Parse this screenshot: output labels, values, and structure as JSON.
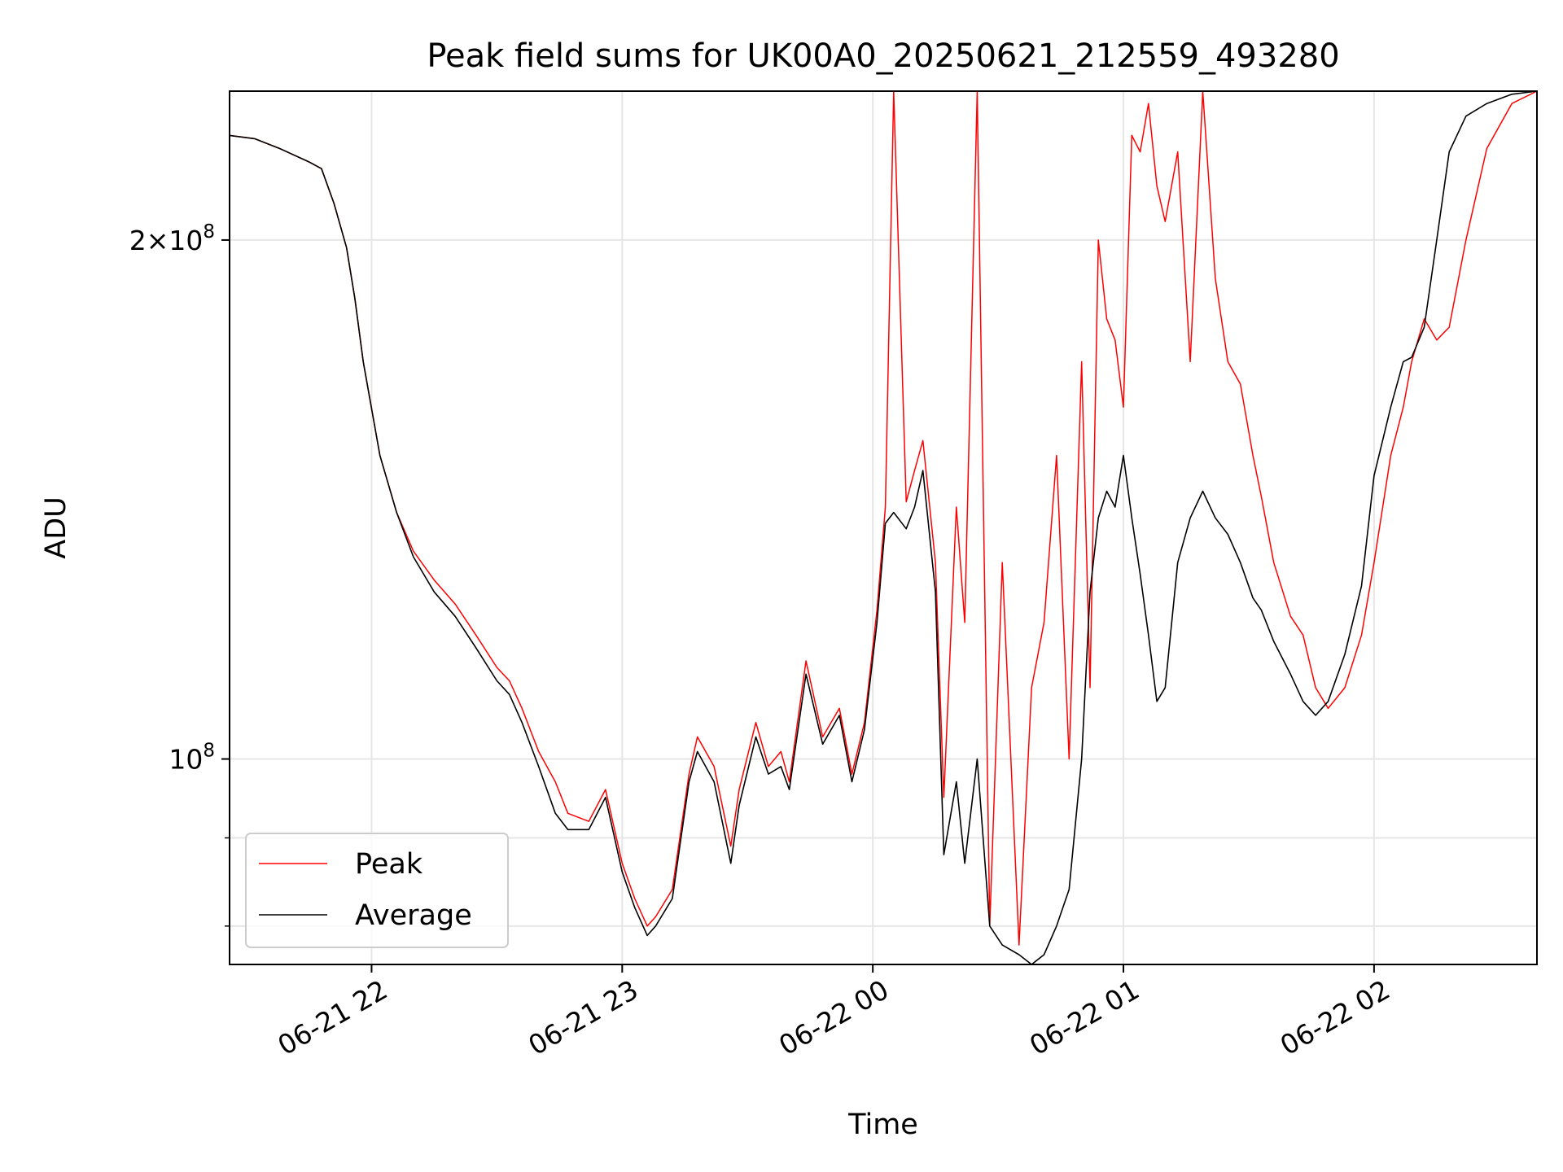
{
  "chart_data": {
    "type": "line",
    "title": "Peak field sums for UK00A0_20250621_212559_493280",
    "xlabel": "Time",
    "ylabel": "ADU",
    "y_scale": "log",
    "ylim": [
      76000000,
      244000000
    ],
    "xlim": [
      "2025-06-21 21:26",
      "2025-06-22 02:39"
    ],
    "grid": true,
    "legend_location": "lower-left",
    "x_ticks": [
      {
        "value": "2025-06-21 22:00",
        "label": "06-21 22"
      },
      {
        "value": "2025-06-21 23:00",
        "label": "06-21 23"
      },
      {
        "value": "2025-06-22 00:00",
        "label": "06-22 00"
      },
      {
        "value": "2025-06-22 01:00",
        "label": "06-22 01"
      },
      {
        "value": "2025-06-22 02:00",
        "label": "06-22 02"
      }
    ],
    "y_ticks": [
      {
        "value": 100000000,
        "base": "10",
        "exp": "8",
        "coef": ""
      },
      {
        "value": 200000000,
        "base": "10",
        "exp": "8",
        "coef": "2"
      }
    ],
    "y_minor_ticks": [
      80000000,
      90000000
    ],
    "series": [
      {
        "name": "Peak",
        "color": "#ff0000",
        "x": [
          "2025-06-21 21:26",
          "2025-06-21 21:32",
          "2025-06-21 21:38",
          "2025-06-21 21:45",
          "2025-06-21 21:48",
          "2025-06-21 21:51",
          "2025-06-21 21:54",
          "2025-06-21 21:56",
          "2025-06-21 21:58",
          "2025-06-21 22:02",
          "2025-06-21 22:06",
          "2025-06-21 22:10",
          "2025-06-21 22:15",
          "2025-06-21 22:20",
          "2025-06-21 22:25",
          "2025-06-21 22:30",
          "2025-06-21 22:33",
          "2025-06-21 22:36",
          "2025-06-21 22:40",
          "2025-06-21 22:44",
          "2025-06-21 22:47",
          "2025-06-21 22:52",
          "2025-06-21 22:56",
          "2025-06-21 23:00",
          "2025-06-21 23:03",
          "2025-06-21 23:06",
          "2025-06-21 23:08",
          "2025-06-21 23:12",
          "2025-06-21 23:16",
          "2025-06-21 23:18",
          "2025-06-21 23:22",
          "2025-06-21 23:26",
          "2025-06-21 23:28",
          "2025-06-21 23:32",
          "2025-06-21 23:35",
          "2025-06-21 23:38",
          "2025-06-21 23:40",
          "2025-06-21 23:44",
          "2025-06-21 23:48",
          "2025-06-21 23:52",
          "2025-06-21 23:55",
          "2025-06-21 23:58",
          "2025-06-22 00:01",
          "2025-06-22 00:03",
          "2025-06-22 00:05",
          "2025-06-22 00:08",
          "2025-06-22 00:10",
          "2025-06-22 00:12",
          "2025-06-22 00:15",
          "2025-06-22 00:17",
          "2025-06-22 00:20",
          "2025-06-22 00:22",
          "2025-06-22 00:25",
          "2025-06-22 00:28",
          "2025-06-22 00:31",
          "2025-06-22 00:35",
          "2025-06-22 00:38",
          "2025-06-22 00:41",
          "2025-06-22 00:44",
          "2025-06-22 00:47",
          "2025-06-22 00:50",
          "2025-06-22 00:52",
          "2025-06-22 00:54",
          "2025-06-22 00:56",
          "2025-06-22 00:58",
          "2025-06-22 01:00",
          "2025-06-22 01:02",
          "2025-06-22 01:04",
          "2025-06-22 01:06",
          "2025-06-22 01:08",
          "2025-06-22 01:10",
          "2025-06-22 01:13",
          "2025-06-22 01:16",
          "2025-06-22 01:19",
          "2025-06-22 01:22",
          "2025-06-22 01:25",
          "2025-06-22 01:28",
          "2025-06-22 01:31",
          "2025-06-22 01:33",
          "2025-06-22 01:36",
          "2025-06-22 01:40",
          "2025-06-22 01:43",
          "2025-06-22 01:46",
          "2025-06-22 01:49",
          "2025-06-22 01:53",
          "2025-06-22 01:57",
          "2025-06-22 02:00",
          "2025-06-22 02:04",
          "2025-06-22 02:07",
          "2025-06-22 02:09",
          "2025-06-22 02:12",
          "2025-06-22 02:15",
          "2025-06-22 02:18",
          "2025-06-22 02:22",
          "2025-06-22 02:27",
          "2025-06-22 02:33",
          "2025-06-22 02:39"
        ],
        "values": [
          230000000,
          229000000,
          226000000,
          222000000,
          220000000,
          210000000,
          198000000,
          185000000,
          170000000,
          150000000,
          139000000,
          132000000,
          127000000,
          123000000,
          118000000,
          113000000,
          111000000,
          107000000,
          101000000,
          97000000,
          93000000,
          92000000,
          96000000,
          87000000,
          83000000,
          80000000,
          81000000,
          84000000,
          98000000,
          103000000,
          99000000,
          89000000,
          96000000,
          105000000,
          99000000,
          101000000,
          97000000,
          114000000,
          103000000,
          107000000,
          98000000,
          105000000,
          122000000,
          140000000,
          244000000,
          141000000,
          147000000,
          153000000,
          130000000,
          95000000,
          140000000,
          120000000,
          244000000,
          80000000,
          130000000,
          78000000,
          110000000,
          120000000,
          150000000,
          100000000,
          170000000,
          110000000,
          200000000,
          180000000,
          175000000,
          160000000,
          230000000,
          225000000,
          240000000,
          215000000,
          205000000,
          225000000,
          170000000,
          244000000,
          190000000,
          170000000,
          165000000,
          150000000,
          142000000,
          130000000,
          121000000,
          118000000,
          110000000,
          107000000,
          110000000,
          118000000,
          130000000,
          150000000,
          160000000,
          170000000,
          180000000,
          175000000,
          178000000,
          200000000,
          226000000,
          240000000,
          244000000
        ]
      },
      {
        "name": "Average",
        "color": "#000000",
        "x": [
          "2025-06-21 21:26",
          "2025-06-21 21:32",
          "2025-06-21 21:38",
          "2025-06-21 21:45",
          "2025-06-21 21:48",
          "2025-06-21 21:51",
          "2025-06-21 21:54",
          "2025-06-21 21:56",
          "2025-06-21 21:58",
          "2025-06-21 22:02",
          "2025-06-21 22:06",
          "2025-06-21 22:10",
          "2025-06-21 22:15",
          "2025-06-21 22:20",
          "2025-06-21 22:25",
          "2025-06-21 22:30",
          "2025-06-21 22:33",
          "2025-06-21 22:36",
          "2025-06-21 22:40",
          "2025-06-21 22:44",
          "2025-06-21 22:47",
          "2025-06-21 22:52",
          "2025-06-21 22:56",
          "2025-06-21 23:00",
          "2025-06-21 23:03",
          "2025-06-21 23:06",
          "2025-06-21 23:08",
          "2025-06-21 23:12",
          "2025-06-21 23:16",
          "2025-06-21 23:18",
          "2025-06-21 23:22",
          "2025-06-21 23:26",
          "2025-06-21 23:28",
          "2025-06-21 23:32",
          "2025-06-21 23:35",
          "2025-06-21 23:38",
          "2025-06-21 23:40",
          "2025-06-21 23:44",
          "2025-06-21 23:48",
          "2025-06-21 23:52",
          "2025-06-21 23:55",
          "2025-06-21 23:58",
          "2025-06-22 00:01",
          "2025-06-22 00:03",
          "2025-06-22 00:05",
          "2025-06-22 00:08",
          "2025-06-22 00:10",
          "2025-06-22 00:12",
          "2025-06-22 00:15",
          "2025-06-22 00:17",
          "2025-06-22 00:20",
          "2025-06-22 00:22",
          "2025-06-22 00:25",
          "2025-06-22 00:28",
          "2025-06-22 00:31",
          "2025-06-22 00:35",
          "2025-06-22 00:38",
          "2025-06-22 00:41",
          "2025-06-22 00:44",
          "2025-06-22 00:47",
          "2025-06-22 00:50",
          "2025-06-22 00:52",
          "2025-06-22 00:54",
          "2025-06-22 00:56",
          "2025-06-22 00:58",
          "2025-06-22 01:00",
          "2025-06-22 01:02",
          "2025-06-22 01:04",
          "2025-06-22 01:06",
          "2025-06-22 01:08",
          "2025-06-22 01:10",
          "2025-06-22 01:13",
          "2025-06-22 01:16",
          "2025-06-22 01:19",
          "2025-06-22 01:22",
          "2025-06-22 01:25",
          "2025-06-22 01:28",
          "2025-06-22 01:31",
          "2025-06-22 01:33",
          "2025-06-22 01:36",
          "2025-06-22 01:40",
          "2025-06-22 01:43",
          "2025-06-22 01:46",
          "2025-06-22 01:49",
          "2025-06-22 01:53",
          "2025-06-22 01:57",
          "2025-06-22 02:00",
          "2025-06-22 02:04",
          "2025-06-22 02:07",
          "2025-06-22 02:09",
          "2025-06-22 02:12",
          "2025-06-22 02:15",
          "2025-06-22 02:18",
          "2025-06-22 02:22",
          "2025-06-22 02:27",
          "2025-06-22 02:33",
          "2025-06-22 02:39"
        ],
        "values": [
          230000000,
          229000000,
          226000000,
          222000000,
          220000000,
          210000000,
          198000000,
          185000000,
          170000000,
          150000000,
          139000000,
          131000000,
          125000000,
          121000000,
          116000000,
          111000000,
          109000000,
          105000000,
          99000000,
          93000000,
          91000000,
          91000000,
          95000000,
          86000000,
          82000000,
          79000000,
          80000000,
          83000000,
          97000000,
          101000000,
          97000000,
          87000000,
          94000000,
          103000000,
          98000000,
          99000000,
          96000000,
          112000000,
          102000000,
          106000000,
          97000000,
          104000000,
          120000000,
          137000000,
          139000000,
          136000000,
          140000000,
          147000000,
          125000000,
          88000000,
          97000000,
          87000000,
          100000000,
          80000000,
          78000000,
          77000000,
          76000000,
          77000000,
          80000000,
          84000000,
          100000000,
          125000000,
          138000000,
          143000000,
          140000000,
          150000000,
          138000000,
          128000000,
          118000000,
          108000000,
          110000000,
          130000000,
          138000000,
          143000000,
          138000000,
          135000000,
          130000000,
          124000000,
          122000000,
          117000000,
          112000000,
          108000000,
          106000000,
          108000000,
          115000000,
          126000000,
          146000000,
          160000000,
          170000000,
          171000000,
          178000000,
          200000000,
          225000000,
          236000000,
          240000000,
          243000000,
          244000000
        ]
      }
    ]
  }
}
